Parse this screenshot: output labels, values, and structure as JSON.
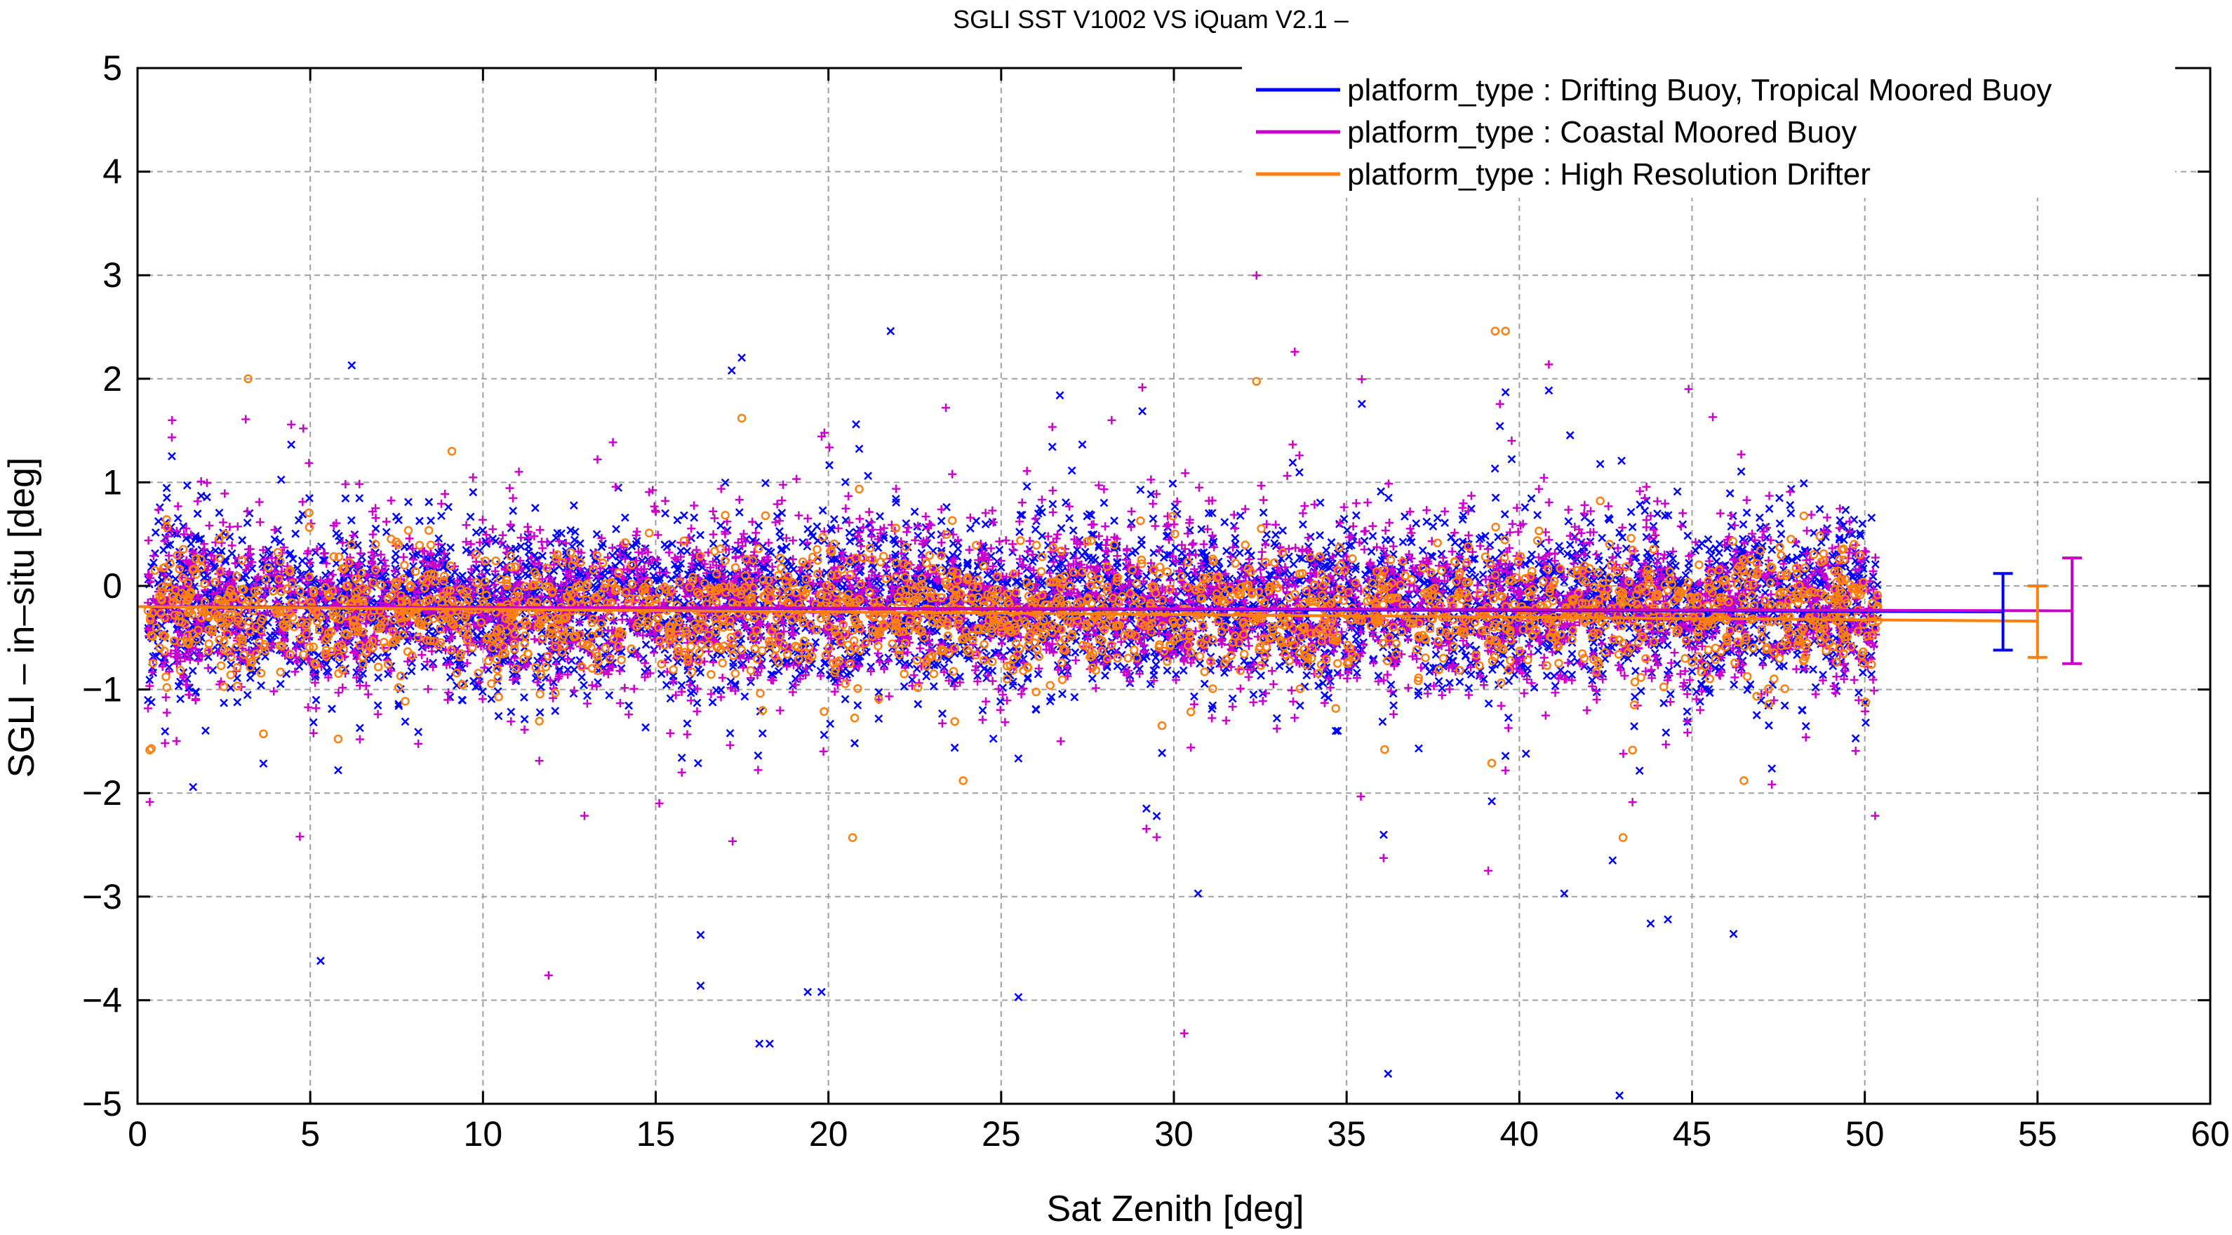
{
  "chart_data": {
    "type": "scatter",
    "title": "SGLI SST V1002 VS iQuam V2.1  –",
    "xlabel": "Sat Zenith [deg]",
    "ylabel": "SGLI – in–situ [deg]",
    "xlim": [
      0,
      60
    ],
    "ylim": [
      -5,
      5
    ],
    "x_ticks": [
      "0",
      "5",
      "10",
      "15",
      "20",
      "25",
      "30",
      "35",
      "40",
      "45",
      "50",
      "55",
      "60"
    ],
    "y_ticks": [
      "−5",
      "−4",
      "−3",
      "−2",
      "−1",
      "0",
      "1",
      "2",
      "3",
      "4",
      "5"
    ],
    "grid": true,
    "legend_position": "top-right",
    "series": [
      {
        "name": "platform_type : Drifting Buoy, Tropical Moored Buoy",
        "color": "#0000ff",
        "marker": "x",
        "mean_line": {
          "x": [
            0,
            54
          ],
          "y": [
            -0.2,
            -0.25
          ]
        },
        "summary_errorbar": {
          "x": 54,
          "mean": -0.25,
          "low": -0.62,
          "high": 0.12
        },
        "scatter_band": {
          "x_range": [
            0.3,
            50.4
          ],
          "mean": -0.2,
          "sd": 0.36
        },
        "outliers": [
          [
            6.2,
            2.13
          ],
          [
            17.2,
            2.08
          ],
          [
            21.8,
            2.46
          ],
          [
            39.6,
            1.87
          ],
          [
            5.3,
            -3.62
          ],
          [
            16.3,
            -3.37
          ],
          [
            16.3,
            -3.86
          ],
          [
            18.0,
            -4.42
          ],
          [
            18.3,
            -4.42
          ],
          [
            19.4,
            -3.92
          ],
          [
            19.8,
            -3.92
          ],
          [
            25.5,
            -3.97
          ],
          [
            30.7,
            -2.97
          ],
          [
            36.2,
            -4.71
          ],
          [
            42.9,
            -4.92
          ],
          [
            43.8,
            -3.26
          ],
          [
            44.3,
            -3.22
          ],
          [
            46.2,
            -3.36
          ],
          [
            42.7,
            -2.65
          ],
          [
            41.3,
            -2.97
          ],
          [
            26.7,
            1.84
          ],
          [
            20.8,
            1.56
          ]
        ]
      },
      {
        "name": "platform_type : Coastal Moored Buoy",
        "color": "#cc00cc",
        "marker": "+",
        "mean_line": {
          "x": [
            0,
            56
          ],
          "y": [
            -0.2,
            -0.24
          ]
        },
        "summary_errorbar": {
          "x": 56,
          "mean": -0.24,
          "low": -0.75,
          "high": 0.27
        },
        "scatter_band": {
          "x_range": [
            0.3,
            50.4
          ],
          "mean": -0.18,
          "sd": 0.4
        },
        "outliers": [
          [
            1.0,
            1.6
          ],
          [
            4.8,
            1.52
          ],
          [
            11.9,
            -3.76
          ],
          [
            30.3,
            -4.32
          ],
          [
            33.5,
            2.26
          ],
          [
            39.1,
            -2.75
          ],
          [
            44.9,
            1.9
          ],
          [
            45.6,
            1.63
          ],
          [
            4.7,
            -2.42
          ],
          [
            28.2,
            1.6
          ],
          [
            23.4,
            1.72
          ],
          [
            50.3,
            -2.22
          ]
        ]
      },
      {
        "name": "platform_type : High Resolution Drifter",
        "color": "#ff7f0e",
        "marker": "o",
        "mean_line": {
          "x": [
            0,
            55
          ],
          "y": [
            -0.2,
            -0.34
          ]
        },
        "summary_errorbar": {
          "x": 55,
          "mean": -0.34,
          "low": -0.69,
          "high": 0.0
        },
        "scatter_band": {
          "x_range": [
            0.3,
            50.4
          ],
          "mean": -0.25,
          "sd": 0.28
        },
        "outliers": [
          [
            3.2,
            2.0
          ],
          [
            39.3,
            2.46
          ],
          [
            39.6,
            2.46
          ],
          [
            0.4,
            -1.57
          ],
          [
            20.7,
            -2.43
          ],
          [
            23.9,
            -1.88
          ],
          [
            43.0,
            -2.43
          ],
          [
            46.5,
            -1.88
          ],
          [
            9.1,
            1.3
          ],
          [
            36.1,
            -1.58
          ]
        ]
      }
    ]
  }
}
